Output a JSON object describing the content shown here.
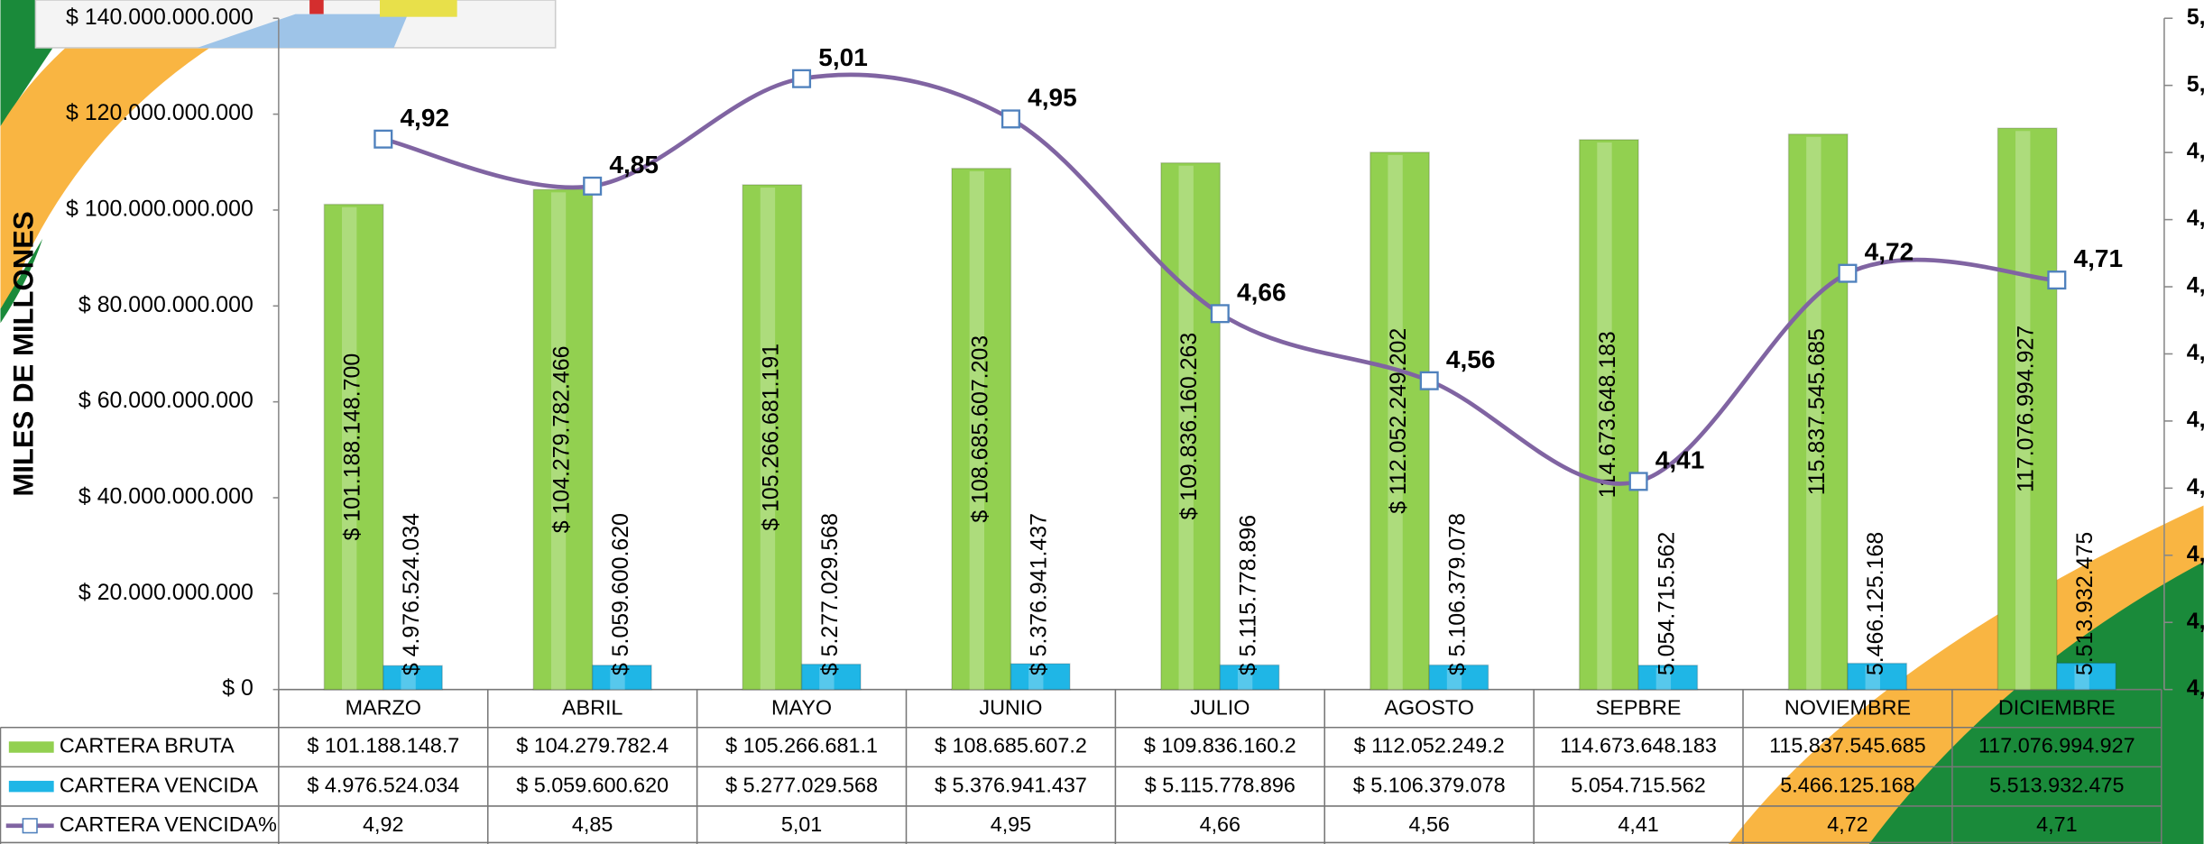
{
  "chart_data": {
    "type": "bar",
    "y_axis_label": "MILES DE MILLONES",
    "categories": [
      "MARZO",
      "ABRIL",
      "MAYO",
      "JUNIO",
      "JULIO",
      "AGOSTO",
      "SEPBRE",
      "NOVIEMBRE",
      "DICIEMBRE"
    ],
    "series": [
      {
        "name": "CARTERA BRUTA",
        "color": "#92d050",
        "values": [
          101188148700,
          104279782466,
          105266681191,
          108685607203,
          109836160263,
          112052249202,
          114673648183,
          115837545685,
          117076994927
        ],
        "value_labels": [
          "$ 101.188.148.700",
          "$ 104.279.782.466",
          "$ 105.266.681.191",
          "$ 108.685.607.203",
          "$ 109.836.160.263",
          "$ 112.052.249.202",
          "114.673.648.183",
          "115.837.545.685",
          "117.076.994.927"
        ],
        "table_labels": [
          "$ 101.188.148.7",
          "$ 104.279.782.4",
          "$ 105.266.681.1",
          "$ 108.685.607.2",
          "$ 109.836.160.2",
          "$ 112.052.249.2",
          "114.673.648.183",
          "115.837.545.685",
          "117.076.994.927"
        ]
      },
      {
        "name": "CARTERA VENCIDA",
        "color": "#1fb6e6",
        "values": [
          4976524034,
          5059600620,
          5277029568,
          5376941437,
          5115778896,
          5106379078,
          5054715562,
          5466125168,
          5513932475
        ],
        "value_labels": [
          "$ 4.976.524.034",
          "$ 5.059.600.620",
          "$ 5.277.029.568",
          "$ 5.376.941.437",
          "$ 5.115.778.896",
          "$ 5.106.379.078",
          "5.054.715.562",
          "5.466.125.168",
          "5.513.932.475"
        ]
      },
      {
        "name": "CARTERA VENCIDA%",
        "color": "#8064a2",
        "type": "line",
        "axis": "y2",
        "values": [
          4.92,
          4.85,
          5.01,
          4.95,
          4.66,
          4.56,
          4.41,
          4.72,
          4.71
        ],
        "value_labels": [
          "4,92",
          "4,85",
          "5,01",
          "4,95",
          "4,66",
          "4,56",
          "4,41",
          "4,72",
          "4,71"
        ]
      }
    ],
    "ylim": [
      0,
      140000000000
    ],
    "yticks": [
      {
        "value": 0,
        "label": "$ 0"
      },
      {
        "value": 20000000000,
        "label": "$ 20.000.000.000"
      },
      {
        "value": 40000000000,
        "label": "$ 40.000.000.000"
      },
      {
        "value": 60000000000,
        "label": "$ 60.000.000.000"
      },
      {
        "value": 80000000000,
        "label": "$ 80.000.000.000"
      },
      {
        "value": 100000000000,
        "label": "$ 100.000.000.000"
      },
      {
        "value": 120000000000,
        "label": "$ 120.000.000.000"
      },
      {
        "value": 140000000000,
        "label": "$ 140.000.000.000"
      }
    ],
    "y2lim": [
      4.1,
      5.1
    ],
    "y2ticks": [
      {
        "value": 4.1,
        "label": "4,"
      },
      {
        "value": 4.2,
        "label": "4,"
      },
      {
        "value": 4.3,
        "label": "4,"
      },
      {
        "value": 4.4,
        "label": "4,"
      },
      {
        "value": 4.5,
        "label": "4,"
      },
      {
        "value": 4.6,
        "label": "4,"
      },
      {
        "value": 4.7,
        "label": "4,"
      },
      {
        "value": 4.8,
        "label": "4,"
      },
      {
        "value": 4.9,
        "label": "4,"
      },
      {
        "value": 5.0,
        "label": "5,"
      },
      {
        "value": 5.1,
        "label": "5,"
      }
    ],
    "grid": false
  }
}
